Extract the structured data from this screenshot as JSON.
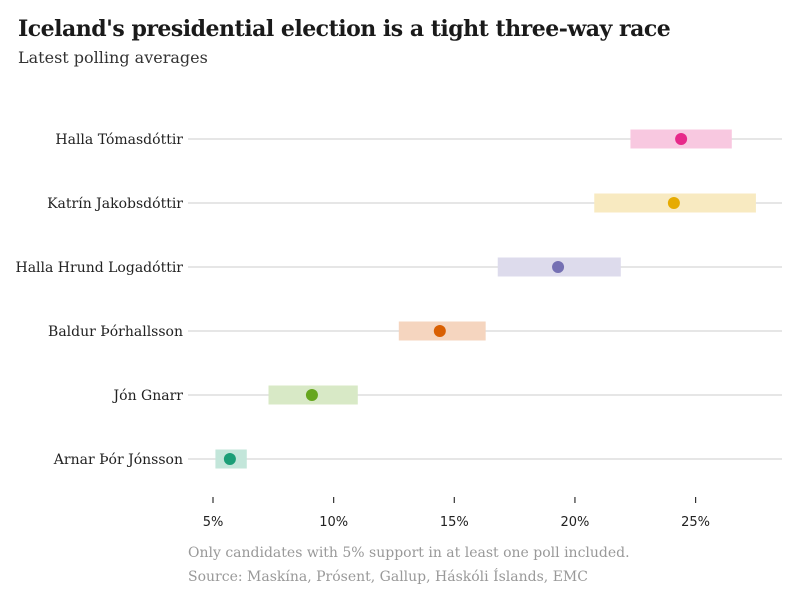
{
  "title": "Iceland's presidential election is a tight three-way race",
  "subtitle": "Latest polling averages",
  "notes": [
    "Only candidates with 5% support in at least one poll included.",
    "Source: Maskína, Prósent, Gallup, Háskóli Íslands, EMC"
  ],
  "chart_data": {
    "type": "range-dot",
    "xlim": [
      4,
      28.5
    ],
    "xticks": [
      5,
      10,
      15,
      20,
      25
    ],
    "xtick_labels": [
      "5%",
      "10%",
      "15%",
      "20%",
      "25%"
    ],
    "grid": "horizontal row lines",
    "categories": [
      "Halla Tómasdóttir",
      "Katrín Jakobsdóttir",
      "Halla Hrund Logadóttir",
      "Baldur Þórhallsson",
      "Jón Gnarr",
      "Arnar Þór Jónsson"
    ],
    "values": [
      24.4,
      24.1,
      19.3,
      14.4,
      9.1,
      5.7
    ],
    "ranges": [
      [
        22.3,
        26.5
      ],
      [
        20.8,
        27.5
      ],
      [
        16.8,
        21.9
      ],
      [
        12.7,
        16.3
      ],
      [
        7.3,
        11.0
      ],
      [
        5.1,
        6.4
      ]
    ],
    "colors": [
      "#e7298a",
      "#e6ab02",
      "#7570b3",
      "#d95f02",
      "#66a61e",
      "#1b9e77"
    ],
    "range_colors": [
      "#f8c8e0",
      "#f8eac1",
      "#dddbec",
      "#f5d5bf",
      "#d8e9c6",
      "#c3e6da"
    ]
  }
}
